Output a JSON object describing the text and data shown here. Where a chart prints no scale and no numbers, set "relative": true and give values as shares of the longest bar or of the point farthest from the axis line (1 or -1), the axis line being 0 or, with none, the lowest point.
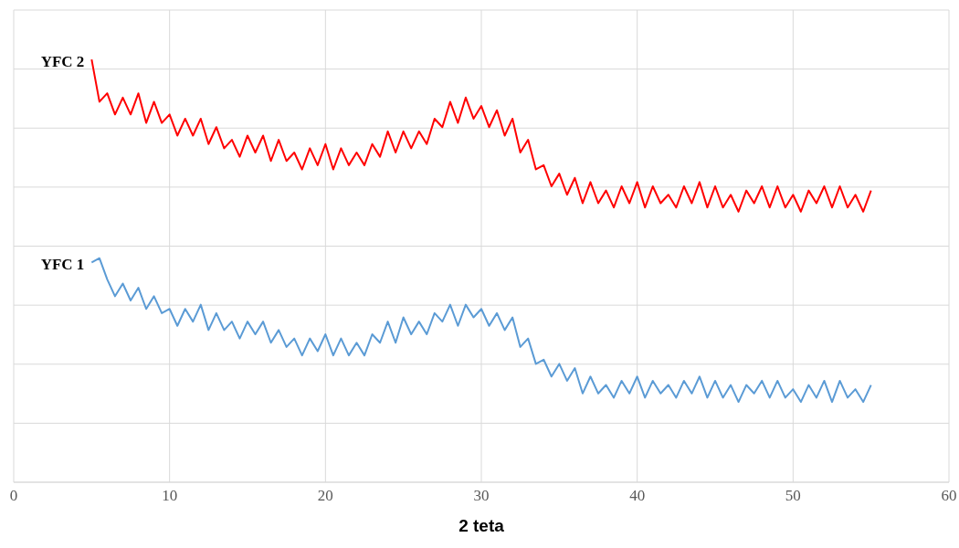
{
  "chart_data": {
    "type": "line",
    "xlabel": "2 teta",
    "relative": true,
    "grid": true,
    "xlim": [
      0,
      60
    ],
    "xticks": [
      0,
      10,
      20,
      30,
      40,
      50,
      60
    ],
    "x": [
      5,
      5.5,
      6,
      6.5,
      7,
      7.5,
      8,
      8.5,
      9,
      9.5,
      10,
      10.5,
      11,
      11.5,
      12,
      12.5,
      13,
      13.5,
      14,
      14.5,
      15,
      15.5,
      16,
      16.5,
      17,
      17.5,
      18,
      18.5,
      19,
      19.5,
      20,
      20.5,
      21,
      21.5,
      22,
      22.5,
      23,
      23.5,
      24,
      24.5,
      25,
      25.5,
      26,
      26.5,
      27,
      27.5,
      28,
      28.5,
      29,
      29.5,
      30,
      30.5,
      31,
      31.5,
      32,
      32.5,
      33,
      33.5,
      34,
      34.5,
      35,
      35.5,
      36,
      36.5,
      37,
      37.5,
      38,
      38.5,
      39,
      39.5,
      40,
      40.5,
      41,
      41.5,
      42,
      42.5,
      43,
      43.5,
      44,
      44.5,
      45,
      45.5,
      46,
      46.5,
      47,
      47.5,
      48,
      48.5,
      49,
      49.5,
      50,
      50.5,
      51,
      51.5,
      52,
      52.5,
      53,
      53.5,
      54,
      54.5,
      55
    ],
    "series": [
      {
        "name": "YFC 2",
        "color": "#ff0000",
        "values": [
          1.0,
          0.9,
          0.92,
          0.87,
          0.91,
          0.87,
          0.92,
          0.85,
          0.9,
          0.85,
          0.87,
          0.82,
          0.86,
          0.82,
          0.86,
          0.8,
          0.84,
          0.79,
          0.81,
          0.77,
          0.82,
          0.78,
          0.82,
          0.76,
          0.81,
          0.76,
          0.78,
          0.74,
          0.79,
          0.75,
          0.8,
          0.74,
          0.79,
          0.75,
          0.78,
          0.75,
          0.8,
          0.77,
          0.83,
          0.78,
          0.83,
          0.79,
          0.83,
          0.8,
          0.86,
          0.84,
          0.9,
          0.85,
          0.91,
          0.86,
          0.89,
          0.84,
          0.88,
          0.82,
          0.86,
          0.78,
          0.81,
          0.74,
          0.75,
          0.7,
          0.73,
          0.68,
          0.72,
          0.66,
          0.71,
          0.66,
          0.69,
          0.65,
          0.7,
          0.66,
          0.71,
          0.65,
          0.7,
          0.66,
          0.68,
          0.65,
          0.7,
          0.66,
          0.71,
          0.65,
          0.7,
          0.65,
          0.68,
          0.64,
          0.69,
          0.66,
          0.7,
          0.65,
          0.7,
          0.65,
          0.68,
          0.64,
          0.69,
          0.66,
          0.7,
          0.65,
          0.7,
          0.65,
          0.68,
          0.64,
          0.69
        ]
      },
      {
        "name": "YFC 1",
        "color": "#5b9bd5",
        "values": [
          0.52,
          0.53,
          0.48,
          0.44,
          0.47,
          0.43,
          0.46,
          0.41,
          0.44,
          0.4,
          0.41,
          0.37,
          0.41,
          0.38,
          0.42,
          0.36,
          0.4,
          0.36,
          0.38,
          0.34,
          0.38,
          0.35,
          0.38,
          0.33,
          0.36,
          0.32,
          0.34,
          0.3,
          0.34,
          0.31,
          0.35,
          0.3,
          0.34,
          0.3,
          0.33,
          0.3,
          0.35,
          0.33,
          0.38,
          0.33,
          0.39,
          0.35,
          0.38,
          0.35,
          0.4,
          0.38,
          0.42,
          0.37,
          0.42,
          0.39,
          0.41,
          0.37,
          0.4,
          0.36,
          0.39,
          0.32,
          0.34,
          0.28,
          0.29,
          0.25,
          0.28,
          0.24,
          0.27,
          0.21,
          0.25,
          0.21,
          0.23,
          0.2,
          0.24,
          0.21,
          0.25,
          0.2,
          0.24,
          0.21,
          0.23,
          0.2,
          0.24,
          0.21,
          0.25,
          0.2,
          0.24,
          0.2,
          0.23,
          0.19,
          0.23,
          0.21,
          0.24,
          0.2,
          0.24,
          0.2,
          0.22,
          0.19,
          0.23,
          0.2,
          0.24,
          0.19,
          0.24,
          0.2,
          0.22,
          0.19,
          0.23
        ]
      }
    ]
  }
}
